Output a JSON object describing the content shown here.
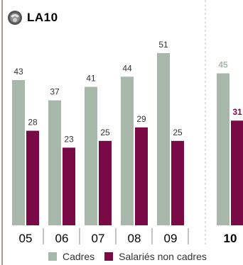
{
  "header": {
    "title": "LA10",
    "logo_icon": "round-seal-logo-icon"
  },
  "colors": {
    "cadres": "#a7b7a9",
    "non_cadres": "#7a0a45",
    "separator": "#bfbfbf"
  },
  "chart_data": {
    "type": "bar",
    "categories": [
      "05",
      "06",
      "07",
      "08",
      "09",
      "10"
    ],
    "highlighted_category": "10",
    "series": [
      {
        "name": "Cadres",
        "values": [
          43,
          37,
          41,
          44,
          51,
          45
        ]
      },
      {
        "name": "Salariés non cadres",
        "values": [
          28,
          23,
          25,
          29,
          25,
          31
        ]
      }
    ],
    "ylim": [
      0,
      60
    ],
    "grid": false,
    "legend_position": "bottom"
  },
  "legend": {
    "items": [
      {
        "label": "Cadres",
        "color": "#a7b7a9"
      },
      {
        "label": "Salariés non cadres",
        "color": "#7a0a45"
      }
    ]
  }
}
